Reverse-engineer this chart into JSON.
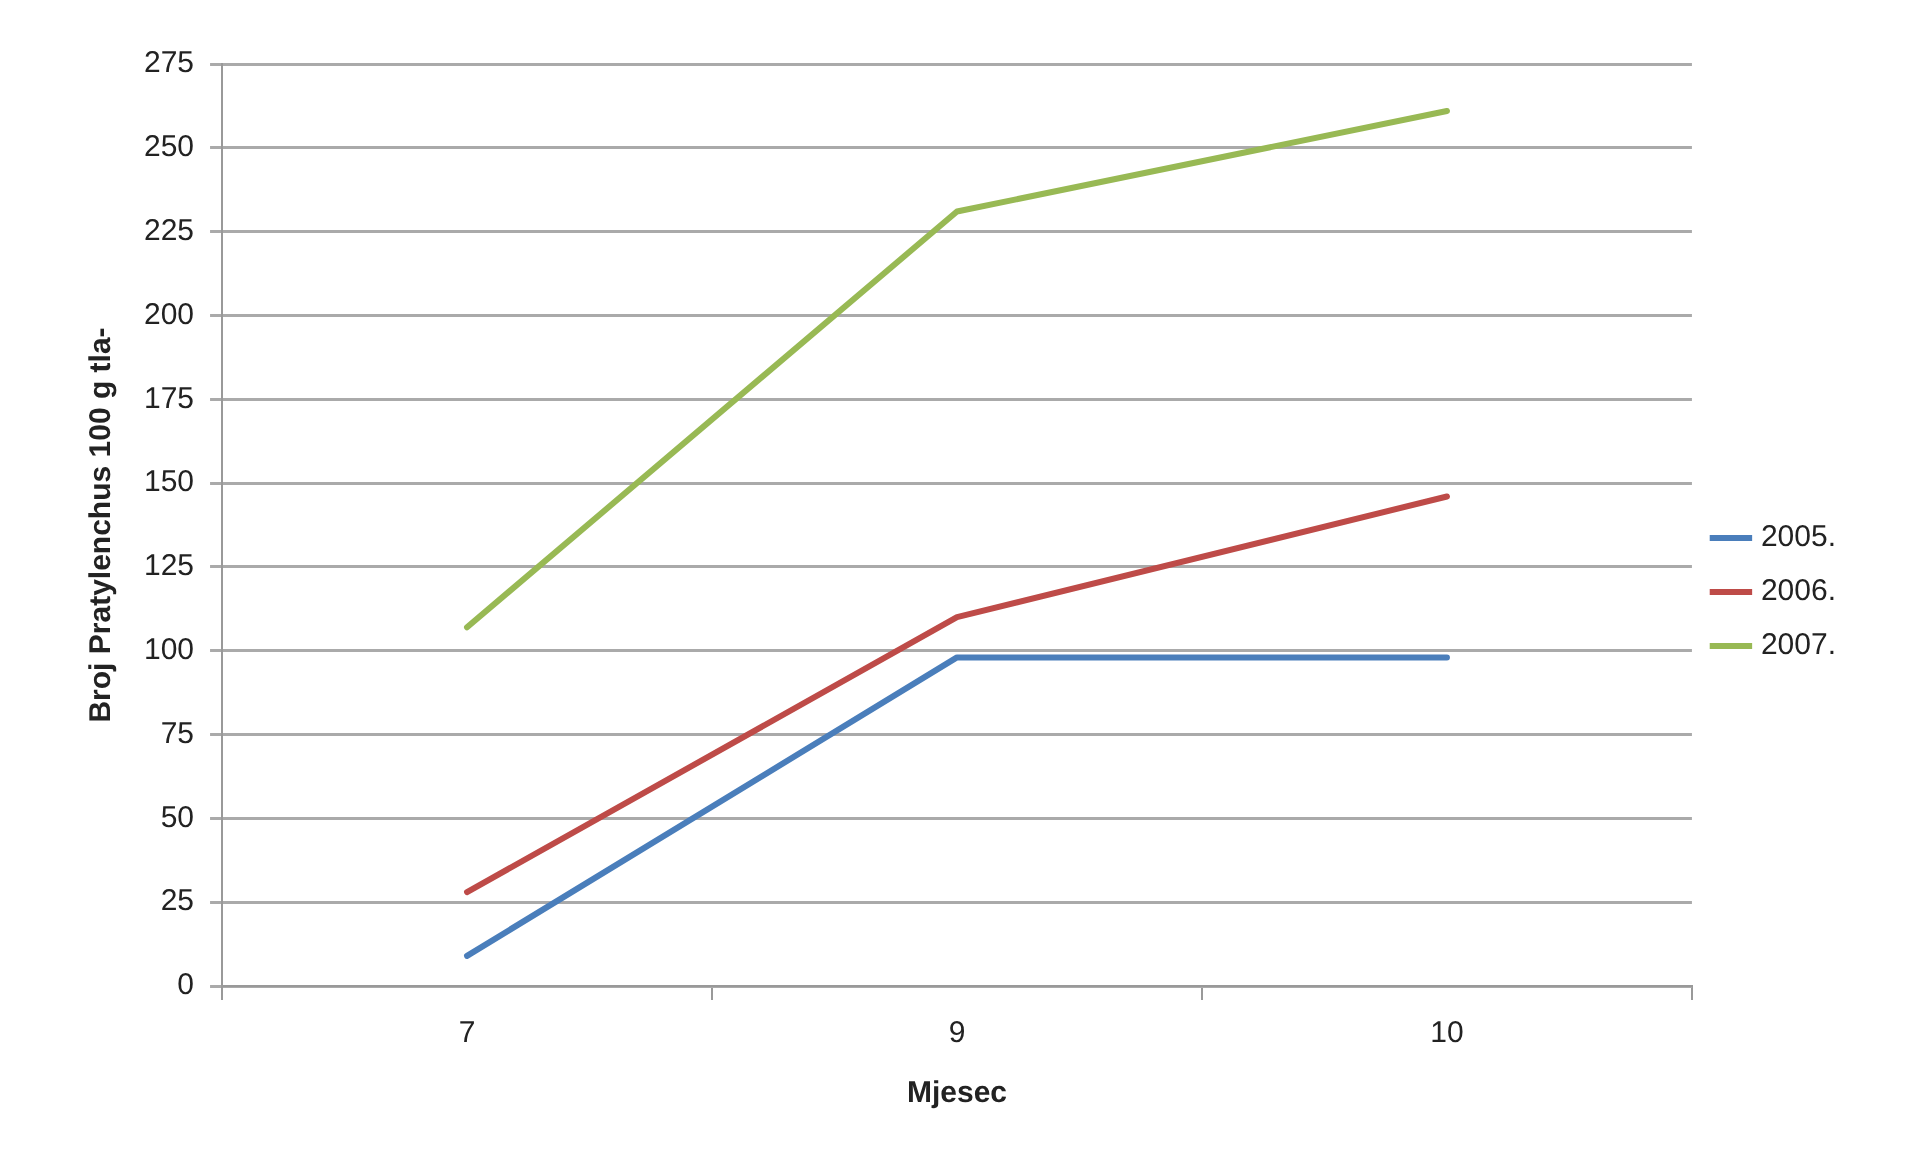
{
  "chart_data": {
    "type": "line",
    "xlabel": "Mjesec",
    "ylabel": "Broj Pratylenchus 100 g tla-",
    "categories": [
      "7",
      "9",
      "10"
    ],
    "series": [
      {
        "name": "2005.",
        "color": "#4a7ebb",
        "values": [
          9,
          98,
          98
        ]
      },
      {
        "name": "2006.",
        "color": "#be4b48",
        "values": [
          28,
          110,
          146
        ]
      },
      {
        "name": "2007.",
        "color": "#98b954",
        "values": [
          107,
          231,
          261
        ]
      }
    ],
    "ylim": [
      0,
      275
    ],
    "yticks": [
      0,
      25,
      50,
      75,
      100,
      125,
      150,
      175,
      200,
      225,
      250,
      275
    ],
    "grid": "y",
    "legend": "right",
    "marker": "none",
    "line_style": "solid"
  }
}
